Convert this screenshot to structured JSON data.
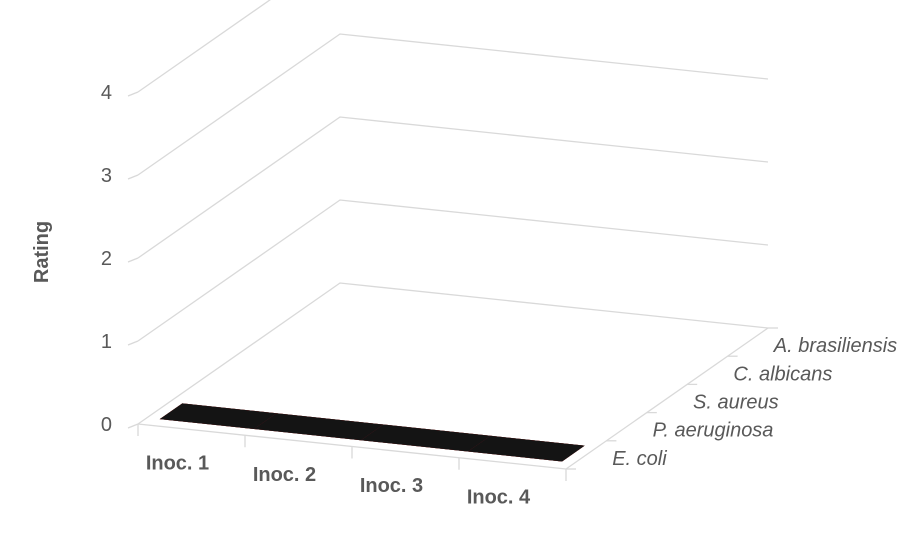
{
  "chart_data": {
    "type": "bar",
    "title": "",
    "ylabel": "Rating",
    "categories": [
      "Inoc. 1",
      "Inoc. 2",
      "Inoc. 3",
      "Inoc. 4"
    ],
    "ylim": [
      0,
      4
    ],
    "yticks": [
      "0",
      "1",
      "2",
      "3",
      "4"
    ],
    "grid": true,
    "series": [
      {
        "name": "E. coli",
        "values": [
          0,
          0,
          0,
          0
        ],
        "color": "#141414"
      },
      {
        "name": "P. aeruginosa",
        "values": [
          0,
          0,
          0,
          0
        ],
        "color": "#b0001e"
      },
      {
        "name": "S. aureus",
        "values": [
          0,
          0,
          0,
          0
        ],
        "color": "#8c8c8c"
      },
      {
        "name": "C. albicans",
        "values": [
          0,
          0,
          0,
          0
        ],
        "color": "#cca000"
      },
      {
        "name": "A. brasiliensis",
        "values": [
          0,
          0,
          0,
          0
        ],
        "color": "#5a1560"
      }
    ]
  }
}
